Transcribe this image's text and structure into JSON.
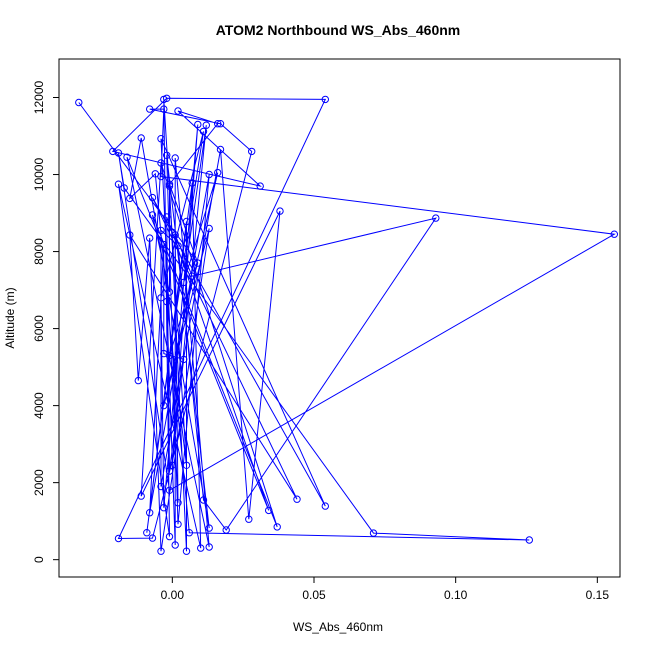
{
  "chart_data": {
    "type": "line",
    "title": "ATOM2 Northbound WS_Abs_460nm",
    "xlabel": "WS_Abs_460nm",
    "ylabel": "Altitude (m)",
    "xlim": [
      -0.04,
      0.158
    ],
    "ylim": [
      -450,
      13000
    ],
    "xticks": [
      0.0,
      0.05,
      0.1,
      0.15
    ],
    "xtick_labels": [
      "0.00",
      "0.05",
      "0.10",
      "0.15"
    ],
    "yticks": [
      0,
      2000,
      4000,
      6000,
      8000,
      10000,
      12000
    ],
    "ytick_labels": [
      "0",
      "2000",
      "4000",
      "6000",
      "8000",
      "10000",
      "12000"
    ],
    "grid": false,
    "color": "#0000ff",
    "marker": "open-circle",
    "points": [
      [
        0.054,
        11950
      ],
      [
        -0.002,
        11980
      ],
      [
        -0.003,
        11950
      ],
      [
        -0.033,
        11870
      ],
      [
        0.009,
        11300
      ],
      [
        0.017,
        11320
      ],
      [
        0.012,
        11280
      ],
      [
        0.011,
        11120
      ],
      [
        -0.008,
        11700
      ],
      [
        0.002,
        11650
      ],
      [
        -0.003,
        11700
      ],
      [
        0.016,
        11320
      ],
      [
        -0.011,
        10950
      ],
      [
        -0.004,
        10930
      ],
      [
        0.028,
        10600
      ],
      [
        -0.021,
        10600
      ],
      [
        -0.019,
        10560
      ],
      [
        0.017,
        10650
      ],
      [
        -0.002,
        10500
      ],
      [
        -0.016,
        10450
      ],
      [
        0.001,
        10430
      ],
      [
        -0.004,
        10300
      ],
      [
        0.031,
        9700
      ],
      [
        -0.006,
        10020
      ],
      [
        -0.004,
        9950
      ],
      [
        0.016,
        10050
      ],
      [
        0.013,
        10000
      ],
      [
        -0.001,
        9750
      ],
      [
        0.038,
        9050
      ],
      [
        -0.019,
        9750
      ],
      [
        -0.017,
        9650
      ],
      [
        0.007,
        9780
      ],
      [
        -0.001,
        9700
      ],
      [
        -0.015,
        9380
      ],
      [
        -0.007,
        9400
      ],
      [
        0.093,
        8870
      ],
      [
        -0.007,
        8950
      ],
      [
        -0.002,
        8900
      ],
      [
        0.005,
        8780
      ],
      [
        -0.004,
        8550
      ],
      [
        0.156,
        8450
      ],
      [
        0.001,
        8430
      ],
      [
        -0.008,
        8350
      ],
      [
        -0.015,
        8430
      ],
      [
        0.013,
        8600
      ],
      [
        -0.003,
        8180
      ],
      [
        0.002,
        8150
      ],
      [
        0.0,
        8500
      ],
      [
        0.009,
        7700
      ],
      [
        0.007,
        7360
      ],
      [
        0.004,
        7200
      ],
      [
        -0.001,
        6950
      ],
      [
        -0.004,
        6800
      ],
      [
        -0.002,
        6700
      ],
      [
        -0.003,
        5350
      ],
      [
        -0.001,
        5300
      ],
      [
        0.004,
        5200
      ],
      [
        -0.012,
        4650
      ],
      [
        -0.003,
        4000
      ],
      [
        0.0,
        2450
      ],
      [
        0.005,
        2450
      ],
      [
        -0.001,
        2300
      ],
      [
        -0.004,
        1900
      ],
      [
        -0.001,
        1800
      ],
      [
        -0.011,
        1650
      ],
      [
        0.044,
        1570
      ],
      [
        0.011,
        1550
      ],
      [
        0.002,
        1480
      ],
      [
        0.054,
        1390
      ],
      [
        -0.003,
        1350
      ],
      [
        0.034,
        1280
      ],
      [
        -0.008,
        1220
      ],
      [
        0.027,
        1050
      ],
      [
        0.002,
        920
      ],
      [
        0.037,
        850
      ],
      [
        0.019,
        770
      ],
      [
        0.013,
        820
      ],
      [
        0.006,
        700
      ],
      [
        0.071,
        690
      ],
      [
        -0.009,
        700
      ],
      [
        0.126,
        510
      ],
      [
        -0.019,
        550
      ],
      [
        -0.007,
        560
      ],
      [
        -0.001,
        600
      ],
      [
        0.001,
        380
      ],
      [
        0.013,
        330
      ],
      [
        0.01,
        300
      ],
      [
        0.005,
        220
      ],
      [
        -0.004,
        220
      ]
    ],
    "path": [
      3,
      48,
      27,
      11,
      9,
      22,
      15,
      1,
      0,
      81,
      82,
      14,
      5,
      8,
      10,
      24,
      40,
      63,
      16,
      30,
      78,
      80,
      77,
      23,
      33,
      12,
      76,
      18,
      73,
      26,
      71,
      45,
      54,
      56,
      61,
      37,
      47,
      70,
      19,
      85,
      20,
      84,
      53,
      60,
      2,
      83,
      29,
      86,
      31,
      79,
      38,
      87,
      32,
      51,
      36,
      74,
      21,
      64,
      28,
      72,
      17,
      62,
      39,
      46,
      66,
      75,
      35,
      49,
      41,
      67,
      13,
      68,
      34,
      65,
      43,
      57,
      42,
      88,
      44,
      58,
      25,
      50,
      6,
      59,
      4,
      69,
      52,
      7,
      55,
      48
    ]
  }
}
